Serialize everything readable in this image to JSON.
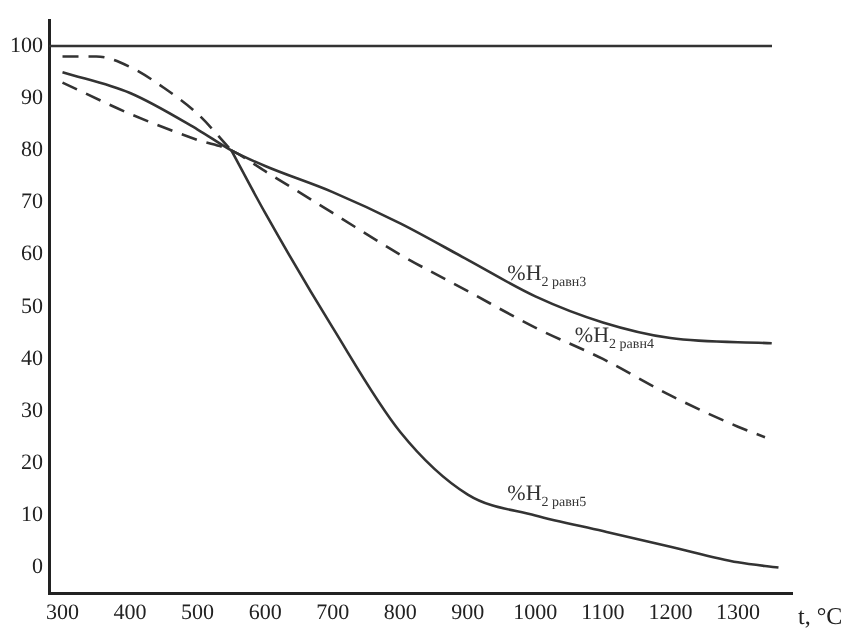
{
  "chart_data": {
    "type": "line",
    "xlabel": "t, °C",
    "xlim": [
      280,
      1380
    ],
    "xticks": [
      300,
      400,
      500,
      600,
      700,
      800,
      900,
      1000,
      1100,
      1200,
      1300
    ],
    "ylim": [
      -5,
      105
    ],
    "yticks": [
      0,
      10,
      20,
      30,
      40,
      50,
      60,
      70,
      80,
      90,
      100
    ],
    "grid": false,
    "legend": false,
    "marker": "none",
    "series": [
      {
        "name": "%H$_{2 равн3}$",
        "color": "#333333",
        "line_style": "solid",
        "x": [
          300,
          400,
          500,
          550,
          600,
          700,
          800,
          900,
          1000,
          1100,
          1200,
          1350
        ],
        "values": [
          95,
          91,
          84,
          80,
          77,
          72,
          66,
          59,
          52,
          47,
          44,
          43
        ]
      },
      {
        "name": "%H$_{2 равн4}$",
        "color": "#333333",
        "line_style": "dashed",
        "x": [
          300,
          400,
          500,
          550,
          600,
          700,
          800,
          900,
          1000,
          1100,
          1200,
          1300,
          1340
        ],
        "values": [
          93,
          87,
          82,
          80,
          76,
          68,
          60,
          53,
          46,
          40,
          33,
          27,
          25
        ]
      },
      {
        "color": "#333333",
        "line_style": "dashed",
        "x": [
          300,
          350,
          400,
          450,
          500,
          550
        ],
        "values": [
          98,
          98,
          96,
          92,
          87,
          80
        ]
      },
      {
        "name": "%H$_{2 равн5}$",
        "color": "#333333",
        "line_style": "solid",
        "x": [
          550,
          600,
          700,
          800,
          900,
          1000,
          1100,
          1200,
          1300,
          1360
        ],
        "values": [
          80,
          68,
          46,
          26,
          14,
          10,
          7,
          4,
          1,
          0
        ]
      }
    ],
    "ref_lines": [
      {
        "axis": "y",
        "value": 100,
        "color": "#333333",
        "line_style": "solid"
      }
    ]
  }
}
